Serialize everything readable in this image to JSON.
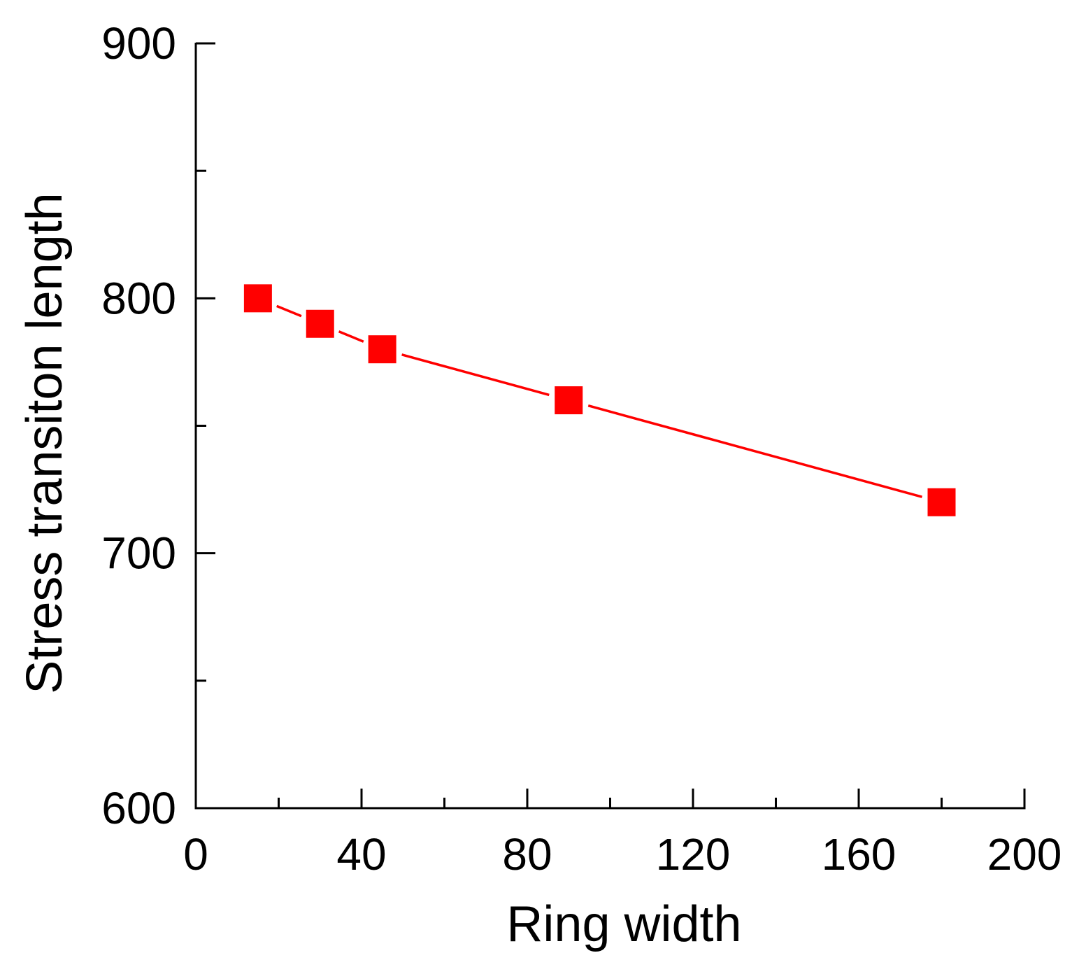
{
  "chart_data": {
    "type": "line",
    "title": "",
    "xlabel": "Ring width",
    "ylabel": "Stress transiton length",
    "xlim": [
      0,
      200
    ],
    "ylim": [
      600,
      900
    ],
    "x_major_ticks": [
      0,
      40,
      80,
      120,
      160,
      200
    ],
    "x_minor_ticks": [
      20,
      60,
      100,
      140,
      180
    ],
    "y_major_ticks": [
      600,
      700,
      800,
      900
    ],
    "y_minor_ticks": [
      650,
      750,
      850
    ],
    "x_tick_labels": [
      "0",
      "40",
      "80",
      "120",
      "160",
      "200"
    ],
    "y_tick_labels": [
      "600",
      "700",
      "800",
      "900"
    ],
    "grid": false,
    "legend": "none",
    "series": [
      {
        "color": "#ff0000",
        "marker": "square",
        "x": [
          15,
          30,
          45,
          90,
          180
        ],
        "y": [
          800,
          790,
          780,
          760,
          720
        ]
      }
    ]
  }
}
